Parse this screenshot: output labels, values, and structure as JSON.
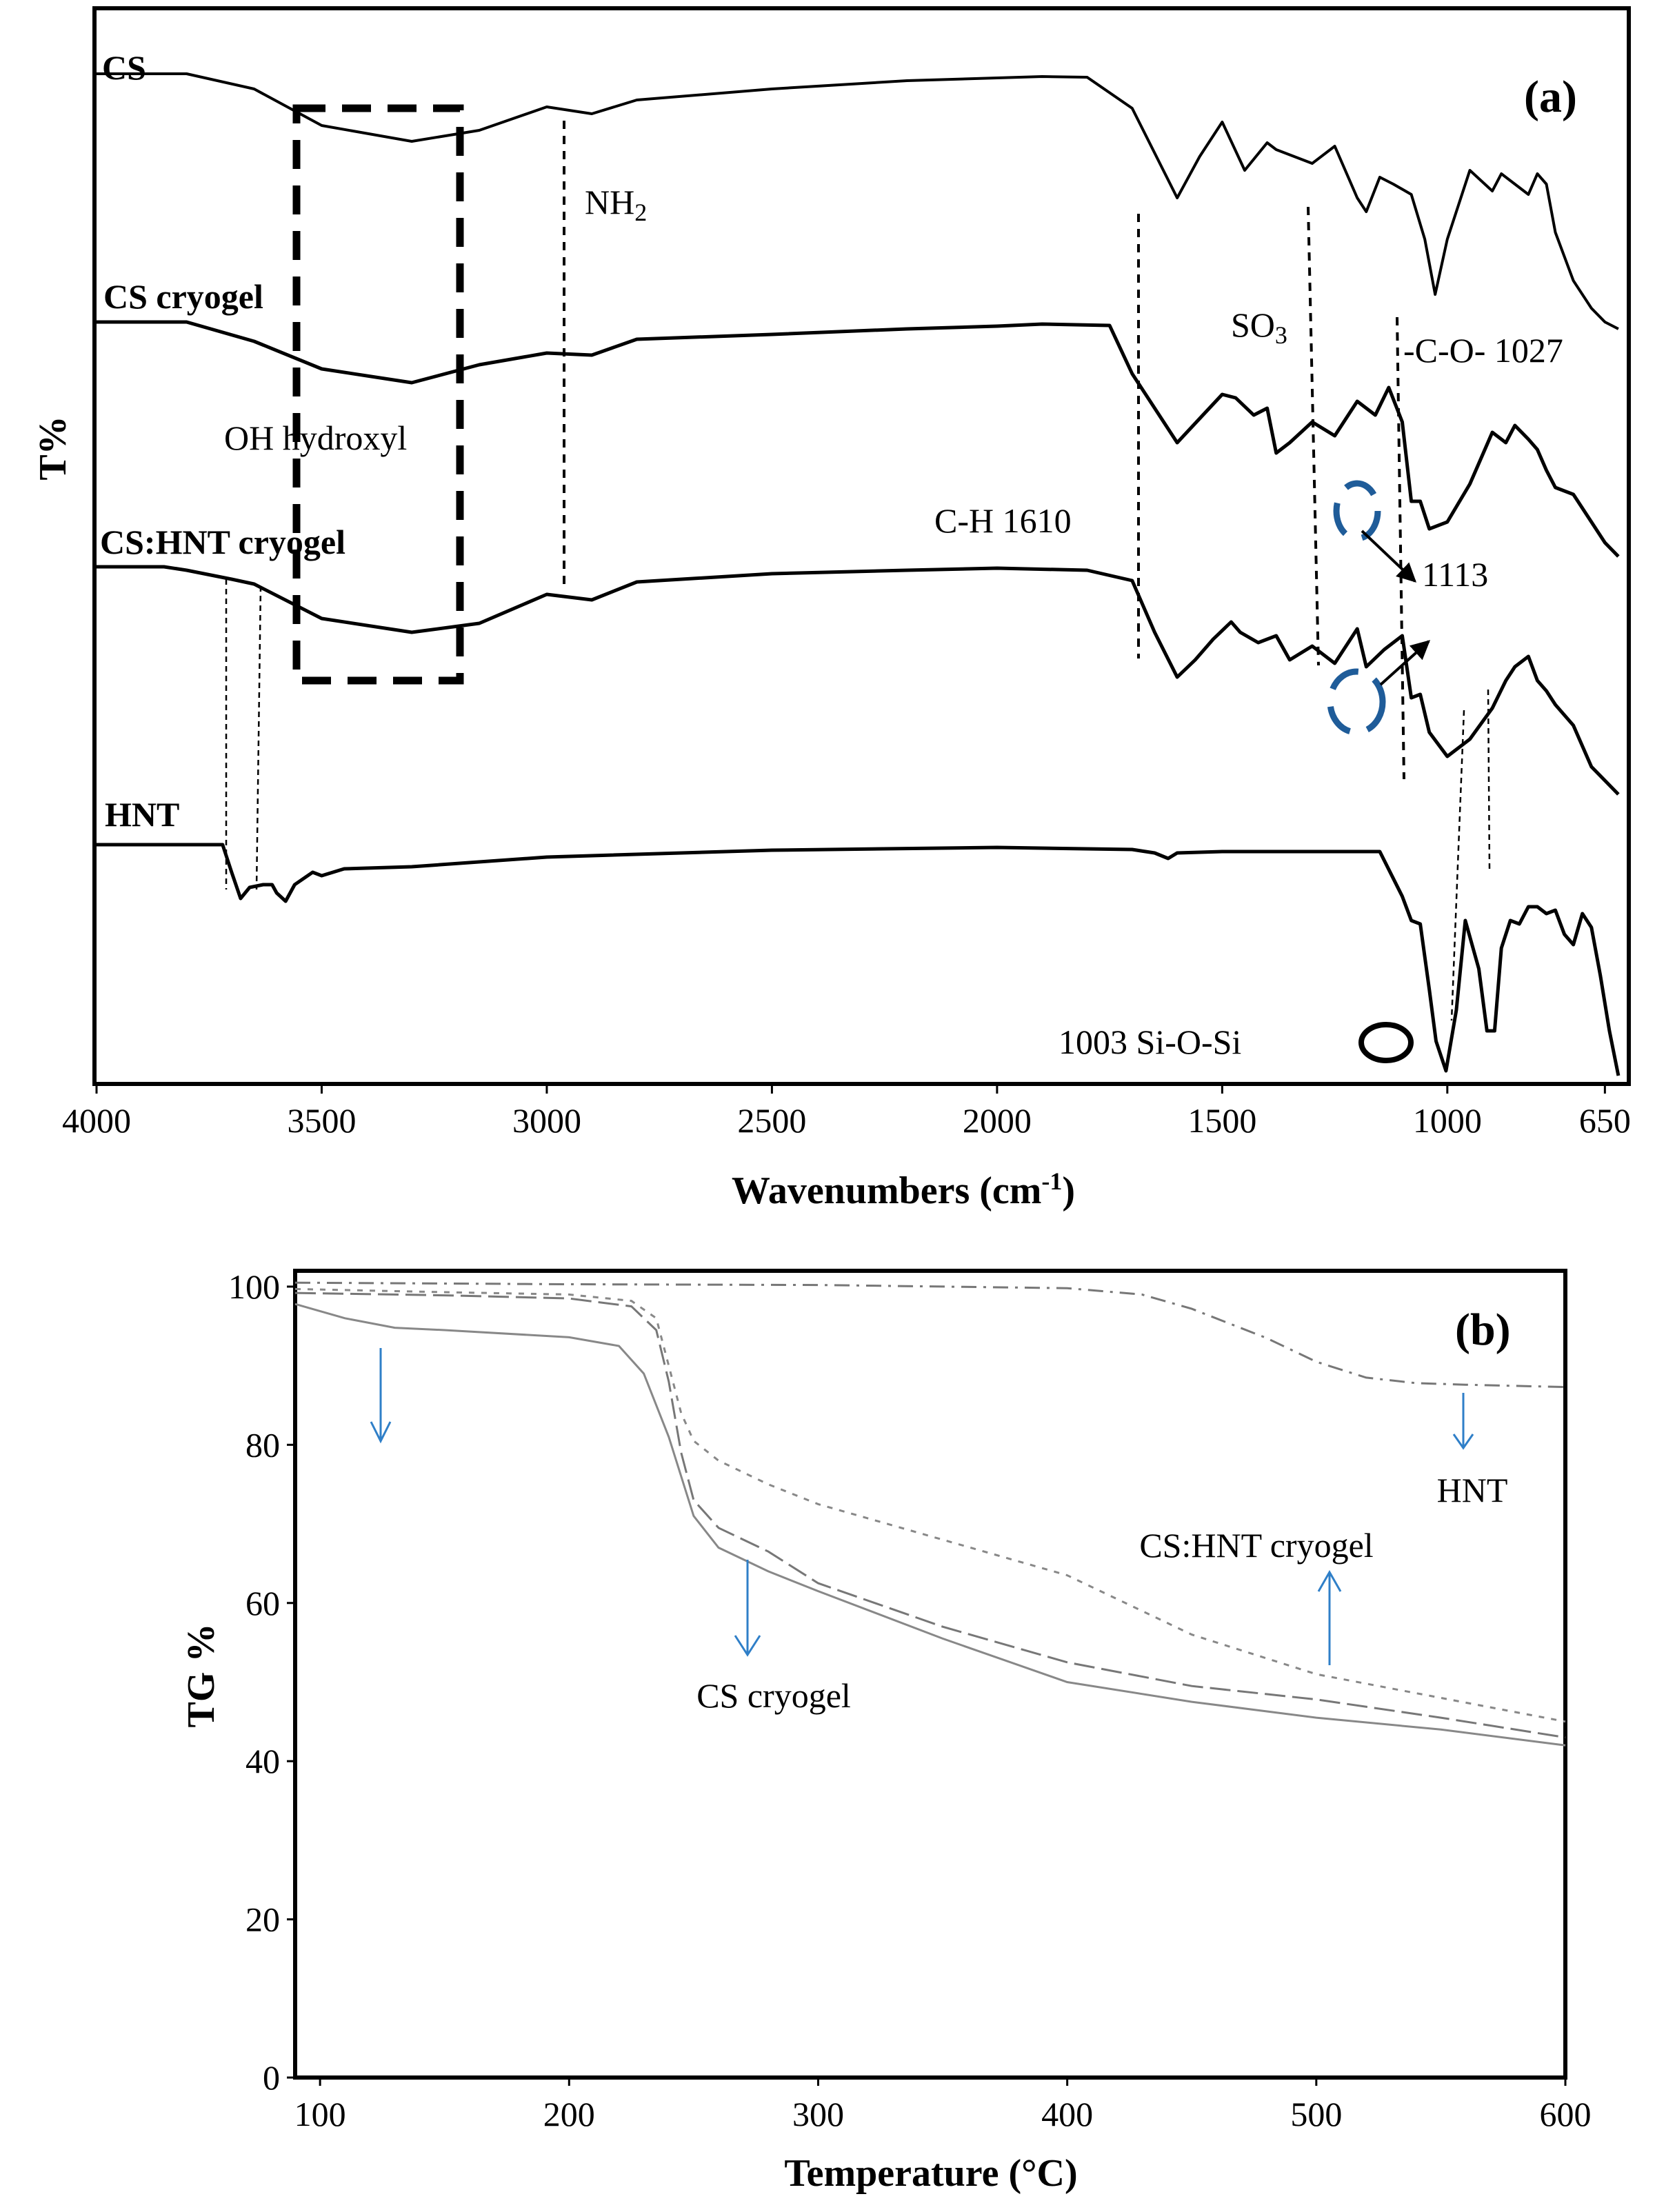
{
  "chart_data": [
    {
      "panel": "(a)",
      "type": "line",
      "xlabel_text": "Wavenumbers (cm",
      "xlabel_sup": "-1",
      "xlabel_close": ")",
      "ylabel": "T%",
      "xlim": [
        4000,
        600
      ],
      "ticks": [
        {
          "value": 4000,
          "label": "4000"
        },
        {
          "value": 3500,
          "label": "3500"
        },
        {
          "value": 3000,
          "label": "3000"
        },
        {
          "value": 2500,
          "label": "2500"
        },
        {
          "value": 2000,
          "label": "2000"
        },
        {
          "value": 1500,
          "label": "1500"
        },
        {
          "value": 1000,
          "label": "1000"
        },
        {
          "value": 650,
          "label": "650"
        }
      ],
      "series": [
        {
          "name": "CS",
          "offset": 95,
          "points": [
            [
              4000,
              0
            ],
            [
              3800,
              0
            ],
            [
              3650,
              22
            ],
            [
              3500,
              75
            ],
            [
              3300,
              98
            ],
            [
              3150,
              82
            ],
            [
              3000,
              48
            ],
            [
              2900,
              58
            ],
            [
              2800,
              38
            ],
            [
              2500,
              22
            ],
            [
              2200,
              10
            ],
            [
              2000,
              6
            ],
            [
              1900,
              4
            ],
            [
              1800,
              5
            ],
            [
              1700,
              50
            ],
            [
              1600,
              180
            ],
            [
              1550,
              120
            ],
            [
              1500,
              70
            ],
            [
              1450,
              140
            ],
            [
              1400,
              100
            ],
            [
              1380,
              110
            ],
            [
              1300,
              130
            ],
            [
              1250,
              105
            ],
            [
              1200,
              180
            ],
            [
              1180,
              200
            ],
            [
              1150,
              150
            ],
            [
              1120,
              160
            ],
            [
              1080,
              175
            ],
            [
              1050,
              240
            ],
            [
              1027,
              320
            ],
            [
              1000,
              240
            ],
            [
              950,
              140
            ],
            [
              900,
              170
            ],
            [
              880,
              145
            ],
            [
              850,
              160
            ],
            [
              820,
              175
            ],
            [
              800,
              145
            ],
            [
              780,
              160
            ],
            [
              760,
              230
            ],
            [
              720,
              300
            ],
            [
              680,
              340
            ],
            [
              650,
              360
            ],
            [
              620,
              370
            ]
          ]
        },
        {
          "name": "CS cryogel",
          "offset": 455,
          "points": [
            [
              4000,
              0
            ],
            [
              3800,
              0
            ],
            [
              3650,
              28
            ],
            [
              3500,
              68
            ],
            [
              3300,
              88
            ],
            [
              3150,
              62
            ],
            [
              3000,
              45
            ],
            [
              2900,
              48
            ],
            [
              2800,
              25
            ],
            [
              2500,
              18
            ],
            [
              2200,
              10
            ],
            [
              2000,
              6
            ],
            [
              1900,
              3
            ],
            [
              1750,
              5
            ],
            [
              1700,
              75
            ],
            [
              1600,
              175
            ],
            [
              1550,
              140
            ],
            [
              1500,
              105
            ],
            [
              1470,
              110
            ],
            [
              1430,
              135
            ],
            [
              1400,
              125
            ],
            [
              1380,
              190
            ],
            [
              1350,
              175
            ],
            [
              1300,
              145
            ],
            [
              1250,
              165
            ],
            [
              1200,
              115
            ],
            [
              1160,
              135
            ],
            [
              1130,
              95
            ],
            [
              1100,
              145
            ],
            [
              1080,
              260
            ],
            [
              1060,
              260
            ],
            [
              1040,
              300
            ],
            [
              1000,
              290
            ],
            [
              950,
              235
            ],
            [
              900,
              160
            ],
            [
              870,
              175
            ],
            [
              850,
              150
            ],
            [
              820,
              170
            ],
            [
              800,
              185
            ],
            [
              780,
              215
            ],
            [
              760,
              240
            ],
            [
              720,
              250
            ],
            [
              680,
              290
            ],
            [
              650,
              320
            ],
            [
              620,
              340
            ]
          ]
        },
        {
          "name": "CS:HNT cryogel",
          "offset": 810,
          "points": [
            [
              4000,
              0
            ],
            [
              3850,
              0
            ],
            [
              3800,
              5
            ],
            [
              3700,
              18
            ],
            [
              3650,
              25
            ],
            [
              3500,
              75
            ],
            [
              3300,
              95
            ],
            [
              3150,
              82
            ],
            [
              3000,
              40
            ],
            [
              2900,
              48
            ],
            [
              2800,
              22
            ],
            [
              2500,
              10
            ],
            [
              2200,
              5
            ],
            [
              2000,
              2
            ],
            [
              1800,
              5
            ],
            [
              1700,
              20
            ],
            [
              1650,
              95
            ],
            [
              1600,
              160
            ],
            [
              1560,
              135
            ],
            [
              1520,
              105
            ],
            [
              1480,
              80
            ],
            [
              1460,
              95
            ],
            [
              1420,
              110
            ],
            [
              1380,
              100
            ],
            [
              1350,
              135
            ],
            [
              1300,
              115
            ],
            [
              1250,
              140
            ],
            [
              1200,
              90
            ],
            [
              1180,
              145
            ],
            [
              1140,
              120
            ],
            [
              1100,
              100
            ],
            [
              1080,
              190
            ],
            [
              1060,
              185
            ],
            [
              1040,
              240
            ],
            [
              1000,
              275
            ],
            [
              950,
              250
            ],
            [
              900,
              205
            ],
            [
              870,
              165
            ],
            [
              850,
              145
            ],
            [
              820,
              130
            ],
            [
              800,
              165
            ],
            [
              780,
              180
            ],
            [
              760,
              200
            ],
            [
              720,
              230
            ],
            [
              680,
              290
            ],
            [
              650,
              310
            ],
            [
              620,
              330
            ]
          ]
        },
        {
          "name": "HNT",
          "offset": 1213,
          "points": [
            [
              4000,
              0
            ],
            [
              3720,
              0
            ],
            [
              3700,
              40
            ],
            [
              3680,
              78
            ],
            [
              3660,
              62
            ],
            [
              3630,
              58
            ],
            [
              3610,
              58
            ],
            [
              3600,
              70
            ],
            [
              3580,
              82
            ],
            [
              3560,
              58
            ],
            [
              3520,
              40
            ],
            [
              3500,
              45
            ],
            [
              3450,
              35
            ],
            [
              3300,
              32
            ],
            [
              3000,
              18
            ],
            [
              2500,
              8
            ],
            [
              2000,
              4
            ],
            [
              1700,
              7
            ],
            [
              1650,
              12
            ],
            [
              1620,
              20
            ],
            [
              1600,
              12
            ],
            [
              1500,
              10
            ],
            [
              1150,
              10
            ],
            [
              1100,
              75
            ],
            [
              1080,
              110
            ],
            [
              1060,
              115
            ],
            [
              1040,
              210
            ],
            [
              1025,
              285
            ],
            [
              1003,
              328
            ],
            [
              980,
              240
            ],
            [
              960,
              110
            ],
            [
              930,
              180
            ],
            [
              912,
              270
            ],
            [
              895,
              270
            ],
            [
              880,
              150
            ],
            [
              860,
              110
            ],
            [
              840,
              115
            ],
            [
              820,
              90
            ],
            [
              800,
              90
            ],
            [
              780,
              100
            ],
            [
              760,
              95
            ],
            [
              740,
              130
            ],
            [
              720,
              145
            ],
            [
              700,
              100
            ],
            [
              680,
              120
            ],
            [
              660,
              190
            ],
            [
              640,
              270
            ],
            [
              620,
              335
            ]
          ]
        }
      ],
      "annotations": {
        "oh_hydroxyl": "OH hydroxyl",
        "nh2_main": "NH",
        "nh2_sub": "2",
        "so3_main": "SO",
        "so3_sub": "3",
        "co_1027": "-C-O- 1027",
        "ch_1610": "C-H 1610",
        "peak_1113": "1113",
        "sioxsi_1003": "1003 Si-O-Si"
      }
    },
    {
      "panel": "(b)",
      "type": "line",
      "xlabel": "Temperature (°C)",
      "ylabel": "TG %",
      "xlim": [
        90,
        600
      ],
      "ylim": [
        0,
        102
      ],
      "xticks": [
        100,
        200,
        300,
        400,
        500,
        600
      ],
      "yticks": [
        0,
        20,
        40,
        60,
        80,
        100
      ],
      "series": [
        {
          "name": "HNT",
          "x": [
            90,
            200,
            300,
            400,
            430,
            450,
            480,
            500,
            520,
            540,
            560,
            600
          ],
          "y": [
            100.5,
            100.3,
            100.2,
            99.8,
            99.0,
            97.2,
            93.5,
            90.5,
            88.5,
            87.8,
            87.6,
            87.3
          ]
        },
        {
          "name": "CS:HNT cryogel",
          "x": [
            90,
            150,
            200,
            225,
            235,
            240,
            245,
            250,
            260,
            280,
            300,
            350,
            400,
            450,
            500,
            550,
            600
          ],
          "y": [
            99.7,
            99.3,
            99.0,
            98.2,
            96.0,
            90.0,
            84.0,
            80.5,
            78.0,
            75.0,
            72.5,
            68.0,
            63.5,
            56.0,
            51.0,
            48.0,
            45.0
          ]
        },
        {
          "name": "CS cryogel",
          "x": [
            90,
            150,
            200,
            225,
            235,
            240,
            245,
            250,
            260,
            280,
            300,
            350,
            400,
            450,
            500,
            550,
            600
          ],
          "y": [
            99.2,
            98.9,
            98.5,
            97.5,
            94.5,
            88.0,
            79.0,
            73.0,
            69.5,
            66.5,
            62.5,
            57.0,
            52.5,
            49.5,
            47.8,
            45.5,
            43.0
          ]
        },
        {
          "name": "CS",
          "x": [
            90,
            110,
            130,
            150,
            200,
            220,
            230,
            240,
            250,
            260,
            280,
            300,
            350,
            400,
            450,
            500,
            550,
            600
          ],
          "y": [
            97.8,
            96.0,
            94.8,
            94.5,
            93.6,
            92.5,
            89.0,
            81.0,
            71.0,
            67.0,
            64.0,
            61.5,
            55.5,
            50.0,
            47.5,
            45.5,
            44.0,
            42.0
          ]
        }
      ],
      "labels": {
        "hnt": "HNT",
        "cs_hnt_cryogel": "CS:HNT cryogel",
        "cs_cryogel": "CS cryogel"
      }
    }
  ]
}
